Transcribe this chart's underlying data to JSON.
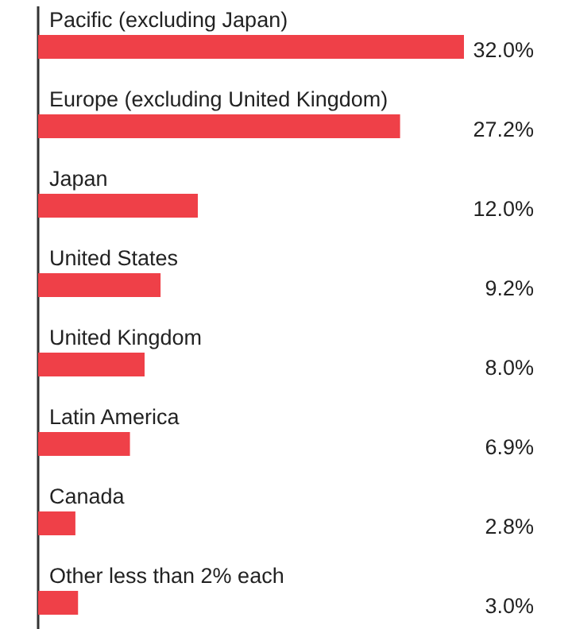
{
  "chart_data": {
    "type": "bar",
    "orientation": "horizontal",
    "categories": [
      "Pacific (excluding Japan)",
      "Europe (excluding United Kingdom)",
      "Japan",
      "United States",
      "United Kingdom",
      "Latin America",
      "Canada",
      "Other less than 2% each"
    ],
    "values": [
      32.0,
      27.2,
      12.0,
      9.2,
      8.0,
      6.9,
      2.8,
      3.0
    ],
    "value_labels": [
      "32.0%",
      "27.2%",
      "12.0%",
      "9.2%",
      "8.0%",
      "6.9%",
      "2.8%",
      "3.0%"
    ],
    "color": "#ef4048"
  }
}
